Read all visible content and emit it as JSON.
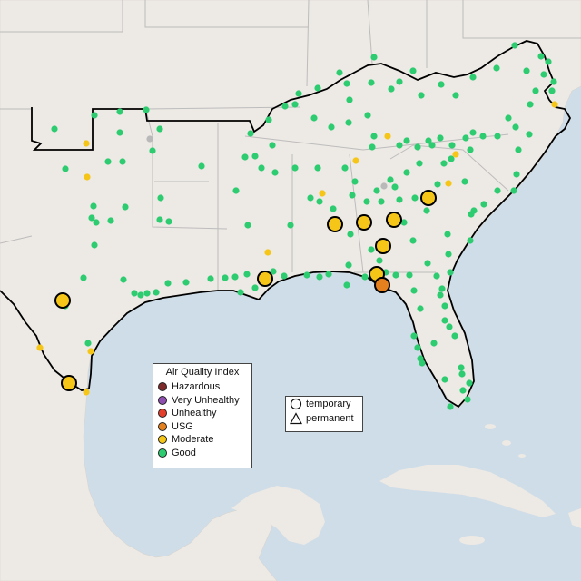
{
  "legend": {
    "title": "Air Quality Index",
    "categories": [
      {
        "label": "Hazardous",
        "color": "#7e2a2a"
      },
      {
        "label": "Very Unhealthy",
        "color": "#8f4fb0"
      },
      {
        "label": "Unhealthy",
        "color": "#e53e2a"
      },
      {
        "label": "USG",
        "color": "#e5801e"
      },
      {
        "label": "Moderate",
        "color": "#f5c518"
      },
      {
        "label": "Good",
        "color": "#2ecc71"
      }
    ]
  },
  "monitor_types": [
    {
      "label": "temporary",
      "symbol": "circle-icon"
    },
    {
      "label": "permanent",
      "symbol": "triangle-icon"
    }
  ],
  "colors": {
    "water": "#cfdde8",
    "land": "#ede9e4",
    "border_state": "#bdbdbd",
    "region_outline": "#000000",
    "no_data": "#b9b9b9"
  }
}
